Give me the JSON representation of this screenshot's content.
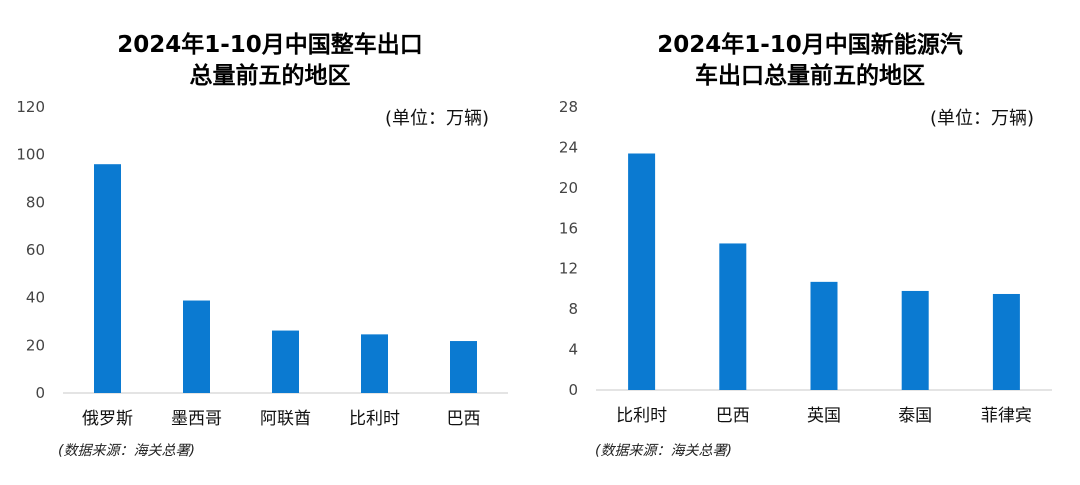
{
  "accent_color": "#0b7ad1",
  "chart_data": [
    {
      "type": "bar",
      "title_lines": [
        "2024年1-10月中国整车出口",
        "总量前五的地区"
      ],
      "unit_note": "(单位：万辆)",
      "source_note": "(数据来源：海关总署)",
      "categories": [
        "俄罗斯",
        "墨西哥",
        "阿联酋",
        "比利时",
        "巴西"
      ],
      "values": [
        96,
        38.8,
        26.2,
        24.6,
        21.8
      ],
      "ylim": [
        0,
        120
      ],
      "yticks": [
        "0",
        "20",
        "40",
        "60",
        "80",
        "100",
        "120"
      ],
      "grid": false
    },
    {
      "type": "bar",
      "title_lines": [
        "2024年1-10月中国新能源汽",
        "车出口总量前五的地区"
      ],
      "unit_note": "(单位：万辆)",
      "source_note": "(数据来源：海关总署)",
      "categories": [
        "比利时",
        "巴西",
        "英国",
        "泰国",
        "菲律宾"
      ],
      "values": [
        23.4,
        14.5,
        10.7,
        9.8,
        9.5
      ],
      "ylim": [
        0,
        28
      ],
      "yticks": [
        "0",
        "4",
        "8",
        "12",
        "16",
        "20",
        "24",
        "28"
      ],
      "grid": false
    }
  ]
}
